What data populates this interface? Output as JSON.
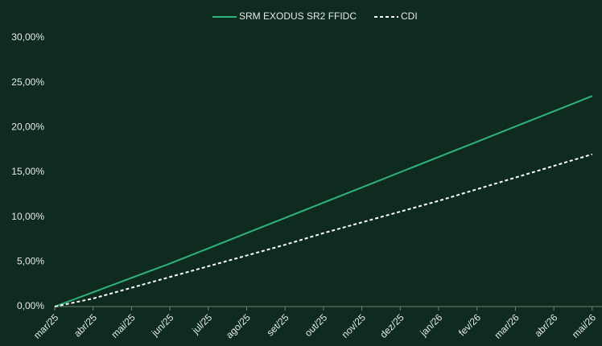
{
  "chart_data": {
    "type": "line",
    "categories": [
      "mar/25",
      "abr/25",
      "mai/25",
      "jun/25",
      "jul/25",
      "ago/25",
      "set/25",
      "out/25",
      "nov/25",
      "dez/25",
      "jan/26",
      "fev/26",
      "mar/26",
      "abr/26",
      "mai/26"
    ],
    "series": [
      {
        "name": "SRM EXODUS SR2 FFIDC",
        "color": "#2fb37e",
        "dashed": false,
        "values": [
          0,
          1.6,
          3.2,
          4.8,
          6.5,
          8.2,
          9.9,
          11.6,
          13.3,
          15.0,
          16.7,
          18.4,
          20.1,
          21.8,
          23.5
        ]
      },
      {
        "name": "CDI",
        "color": "#ffffff",
        "dashed": true,
        "values": [
          0,
          0.9,
          2.1,
          3.3,
          4.5,
          5.7,
          6.9,
          8.2,
          9.4,
          10.6,
          11.8,
          13.1,
          14.4,
          15.7,
          17.0
        ]
      }
    ],
    "ylim": [
      0,
      30
    ],
    "yticks": [
      {
        "value": 0,
        "label": "0,00%"
      },
      {
        "value": 5,
        "label": "5,00%"
      },
      {
        "value": 10,
        "label": "10,00%"
      },
      {
        "value": 15,
        "label": "15,00%"
      },
      {
        "value": 20,
        "label": "20,00%"
      },
      {
        "value": 25,
        "label": "25,00%"
      },
      {
        "value": 30,
        "label": "30,00%"
      }
    ],
    "legend": "top"
  }
}
